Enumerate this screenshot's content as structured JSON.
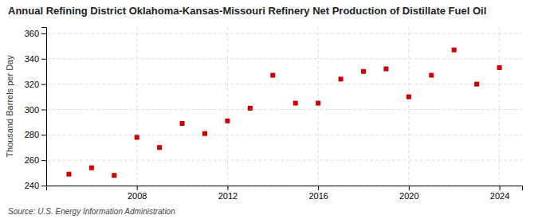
{
  "chart_data": {
    "type": "scatter",
    "title": "Annual Refining District Oklahoma-Kansas-Missouri Refinery Net Production of Distillate Fuel Oil",
    "ylabel": "Thousand Barrels per Day",
    "source": "Source: U.S. Energy Information Administration",
    "x": [
      2005,
      2006,
      2007,
      2008,
      2009,
      2010,
      2011,
      2012,
      2013,
      2014,
      2015,
      2016,
      2017,
      2018,
      2019,
      2020,
      2021,
      2022,
      2023,
      2024
    ],
    "values": [
      249,
      254,
      248,
      278,
      270,
      289,
      281,
      291,
      301,
      327,
      305,
      305,
      324,
      330,
      332,
      310,
      327,
      347,
      320,
      333
    ],
    "color": "#cc0000",
    "marker": "square",
    "xlim": [
      2004,
      2025
    ],
    "xticks": [
      2008,
      2012,
      2016,
      2020,
      2024
    ],
    "ylim": [
      240,
      365
    ],
    "yticks": [
      240,
      260,
      280,
      300,
      320,
      340,
      360
    ],
    "grid": true
  }
}
